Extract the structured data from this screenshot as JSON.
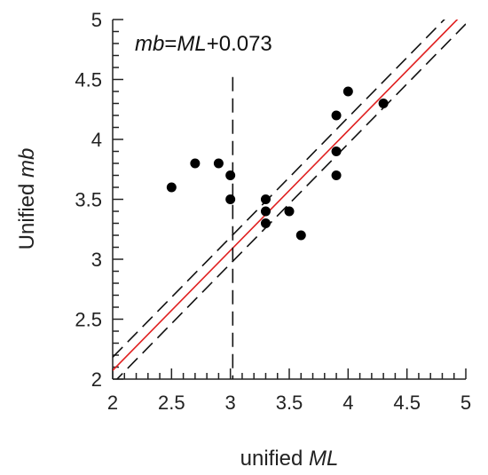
{
  "chart_data": {
    "type": "scatter",
    "title": "",
    "xlabel": {
      "prefix": "unified ",
      "emph": "ML"
    },
    "ylabel": {
      "prefix": "Unified ",
      "emph": "mb"
    },
    "xlim": [
      2,
      5
    ],
    "ylim": [
      2,
      5
    ],
    "x_ticks": [
      "2",
      "2.5",
      "3",
      "3.5",
      "4",
      "4.5",
      "5"
    ],
    "y_ticks": [
      "2",
      "2.5",
      "3",
      "3.5",
      "4",
      "4.5",
      "5"
    ],
    "x_minor_step": 0.1,
    "y_minor_step": 0.1,
    "grid": false,
    "points": [
      {
        "x": 2.5,
        "y": 3.6
      },
      {
        "x": 2.7,
        "y": 3.8
      },
      {
        "x": 2.9,
        "y": 3.8
      },
      {
        "x": 3.0,
        "y": 3.7
      },
      {
        "x": 3.0,
        "y": 3.5
      },
      {
        "x": 3.3,
        "y": 3.5
      },
      {
        "x": 3.3,
        "y": 3.4
      },
      {
        "x": 3.3,
        "y": 3.3
      },
      {
        "x": 3.5,
        "y": 3.4
      },
      {
        "x": 3.6,
        "y": 3.2
      },
      {
        "x": 3.9,
        "y": 4.2
      },
      {
        "x": 3.9,
        "y": 3.9
      },
      {
        "x": 3.9,
        "y": 3.7
      },
      {
        "x": 4.0,
        "y": 4.4
      },
      {
        "x": 4.3,
        "y": 4.3
      }
    ],
    "fit_line": {
      "slope": 1,
      "intercept": 0.073,
      "color": "#e02020"
    },
    "confidence_band": {
      "offset": 0.11,
      "color": "#111111"
    },
    "vertical_line": {
      "x": 3.02,
      "y_top": 4.52,
      "color": "#111111"
    },
    "annotation": {
      "parts": [
        {
          "text": "mb",
          "italic": true
        },
        {
          "text": "=",
          "italic": false
        },
        {
          "text": "ML",
          "italic": true
        },
        {
          "text": "+0.073",
          "italic": false
        }
      ]
    },
    "point_color": "#000000"
  }
}
